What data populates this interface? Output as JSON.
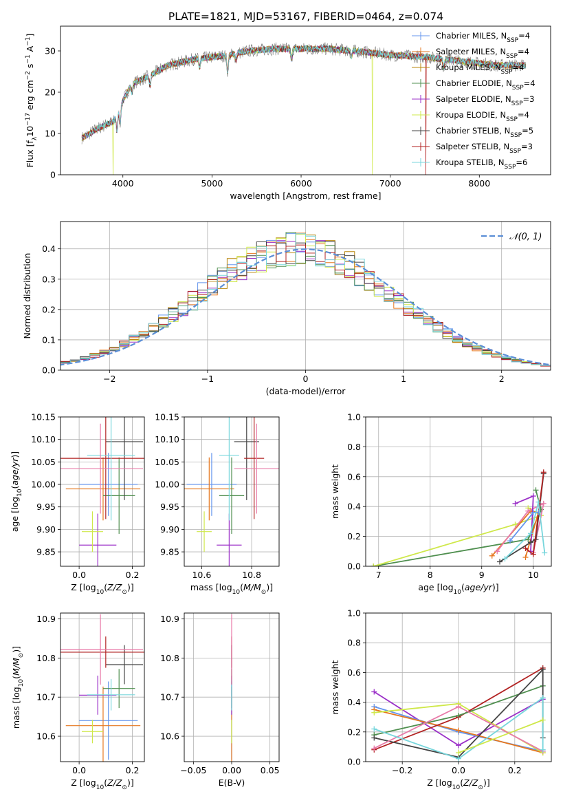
{
  "figure_title": "PLATE=1821, MJD=53167, FIBERID=0464, z=0.074",
  "colors": {
    "Chabrier MILES": "#6495ed",
    "Salpeter MILES": "#e6771e",
    "Kroupa MILES": "#b8860b",
    "Chabrier ELODIE": "#4f8f4f",
    "Salpeter ELODIE": "#9b30c8",
    "Kroupa ELODIE": "#cfe84a",
    "Chabrier STELIB": "#444444",
    "Salpeter STELIB": "#b22222",
    "Kroupa STELIB": "#77d6dc",
    "pink": "#e87aa8",
    "gaussian": "#5b8ed6"
  },
  "chart_data": [
    {
      "id": "spectrum",
      "type": "line",
      "xlabel": "wavelength [Angstrom, rest frame]",
      "ylabel": "Flux [f_λ10^-17 erg cm^-2 s^-1 A^-1]",
      "xlim": [
        3300,
        8800
      ],
      "ylim": [
        0,
        36
      ],
      "xticks": [
        4000,
        5000,
        6000,
        7000,
        8000
      ],
      "yticks": [
        0,
        10,
        20,
        30
      ],
      "grid": false,
      "legend_position": "right",
      "legend": [
        {
          "name": "Chabrier MILES, N_SSP=4",
          "pre": "Chabrier MILES, N",
          "sub": "SSP",
          "post": "=4",
          "color": "#6495ed"
        },
        {
          "name": "Salpeter MILES, N_SSP=4",
          "pre": "Salpeter MILES, N",
          "sub": "SSP",
          "post": "=4",
          "color": "#e6771e"
        },
        {
          "name": "Kroupa MILES, N_SSP=4",
          "pre": "Kroupa MILES, N",
          "sub": "SSP",
          "post": "=4",
          "color": "#b8860b"
        },
        {
          "name": "Chabrier ELODIE, N_SSP=4",
          "pre": "Chabrier ELODIE, N",
          "sub": "SSP",
          "post": "=4",
          "color": "#4f8f4f"
        },
        {
          "name": "Salpeter ELODIE, N_SSP=3",
          "pre": "Salpeter ELODIE, N",
          "sub": "SSP",
          "post": "=3",
          "color": "#9b30c8"
        },
        {
          "name": "Kroupa ELODIE, N_SSP=4",
          "pre": "Kroupa ELODIE, N",
          "sub": "SSP",
          "post": "=4",
          "color": "#cfe84a"
        },
        {
          "name": "Chabrier STELIB, N_SSP=5",
          "pre": "Chabrier STELIB, N",
          "sub": "SSP",
          "post": "=5",
          "color": "#444444"
        },
        {
          "name": "Salpeter STELIB, N_SSP=3",
          "pre": "Salpeter STELIB, N",
          "sub": "SSP",
          "post": "=3",
          "color": "#b22222"
        },
        {
          "name": "Kroupa STELIB, N_SSP=6",
          "pre": "Kroupa STELIB, N",
          "sub": "SSP",
          "post": "=6",
          "color": "#77d6dc"
        }
      ],
      "continuum_knots": [
        [
          3550,
          9
        ],
        [
          3700,
          11
        ],
        [
          3900,
          13
        ],
        [
          4000,
          18
        ],
        [
          4100,
          22
        ],
        [
          4300,
          24
        ],
        [
          4500,
          26.5
        ],
        [
          4800,
          28
        ],
        [
          5000,
          28.5
        ],
        [
          5200,
          29
        ],
        [
          5400,
          30
        ],
        [
          5700,
          30.5
        ],
        [
          6000,
          30.5
        ],
        [
          6300,
          30.5
        ],
        [
          6600,
          30
        ],
        [
          7000,
          29
        ],
        [
          7400,
          28.5
        ],
        [
          7800,
          27.5
        ],
        [
          8200,
          26.5
        ],
        [
          8500,
          26.5
        ]
      ],
      "absorption_features": [
        [
          3934,
          4
        ],
        [
          3969,
          4
        ],
        [
          4102,
          2
        ],
        [
          4305,
          2.5
        ],
        [
          4861,
          2
        ],
        [
          5175,
          4
        ],
        [
          5270,
          1.5
        ],
        [
          5892,
          2.5
        ],
        [
          6563,
          1.5
        ],
        [
          7600,
          2
        ]
      ],
      "spikes_to_zero": [
        {
          "x": 3890,
          "model": "Kroupa ELODIE"
        },
        {
          "x": 6800,
          "model": "Kroupa ELODIE"
        },
        {
          "x": 7400,
          "model": "Salpeter STELIB"
        }
      ]
    },
    {
      "id": "residuals",
      "type": "histogram",
      "xlabel": "(data-model)/error",
      "ylabel": "Normed distribution",
      "xlim": [
        -2.5,
        2.5
      ],
      "ylim": [
        0,
        0.49
      ],
      "xticks": [
        -2,
        -1,
        0,
        1,
        2
      ],
      "yticks": [
        0.0,
        0.1,
        0.2,
        0.3,
        0.4
      ],
      "grid": true,
      "bin_width": 0.1,
      "legend": [
        {
          "name": "𝒩(0, 1)",
          "style": "dashed",
          "color": "#5b8ed6"
        }
      ],
      "series_colors": [
        "#6495ed",
        "#e6771e",
        "#b8860b",
        "#4f8f4f",
        "#9b30c8",
        "#cfe84a",
        "#444444",
        "#b22222",
        "#77d6dc"
      ]
    },
    {
      "id": "age_vs_Z",
      "type": "errorbar",
      "xlabel": "Z [log10(Z/Z⊙)]",
      "ylabel": "age [log10(age/yr)]",
      "xlim": [
        -0.07,
        0.245
      ],
      "ylim": [
        9.818,
        10.15
      ],
      "xticks": [
        0.0,
        0.2
      ],
      "yticks": [
        9.85,
        9.9,
        9.95,
        10.0,
        10.05,
        10.1,
        10.15
      ],
      "grid": true,
      "points": [
        {
          "x": 0.11,
          "xerr": 0.11,
          "y": 10.0,
          "yerr": 0.07,
          "color": "#6495ed"
        },
        {
          "x": 0.09,
          "xerr": 0.14,
          "y": 9.99,
          "yerr": 0.07,
          "color": "#e6771e"
        },
        {
          "x": 0.15,
          "xerr": 0.06,
          "y": 9.975,
          "yerr": 0.085,
          "color": "#4f8f4f"
        },
        {
          "x": 0.07,
          "xerr": 0.07,
          "y": 9.865,
          "yerr": 0.07,
          "color": "#9b30c8"
        },
        {
          "x": 0.05,
          "xerr": 0.04,
          "y": 9.895,
          "yerr": 0.045,
          "color": "#cfe84a"
        },
        {
          "x": 0.17,
          "xerr": 0.07,
          "y": 10.095,
          "yerr": 0.13,
          "color": "#444444"
        },
        {
          "x": 0.1,
          "xerr": 0.17,
          "y": 10.058,
          "yerr": 0.135,
          "color": "#b22222"
        },
        {
          "x": 0.12,
          "xerr": 0.09,
          "y": 10.065,
          "yerr": 0.145,
          "color": "#77d6dc"
        },
        {
          "x": 0.08,
          "xerr": 0.16,
          "y": 10.035,
          "yerr": 0.1,
          "color": "#e87aa8"
        }
      ]
    },
    {
      "id": "age_vs_mass",
      "type": "errorbar",
      "xlabel": "mass [log10(M/M⊙)]",
      "ylabel": "",
      "xlim": [
        10.53,
        10.91
      ],
      "ylim": [
        9.818,
        10.15
      ],
      "xticks": [
        10.6,
        10.8
      ],
      "yticks": [
        9.85,
        9.9,
        9.95,
        10.0,
        10.05,
        10.1,
        10.15
      ],
      "grid": true,
      "points": [
        {
          "x": 10.64,
          "xerr": 0.1,
          "y": 10.0,
          "yerr": 0.07,
          "color": "#6495ed"
        },
        {
          "x": 10.63,
          "xerr": 0.1,
          "y": 9.99,
          "yerr": 0.07,
          "color": "#e6771e"
        },
        {
          "x": 10.72,
          "xerr": 0.05,
          "y": 9.975,
          "yerr": 0.085,
          "color": "#4f8f4f"
        },
        {
          "x": 10.71,
          "xerr": 0.05,
          "y": 9.865,
          "yerr": 0.07,
          "color": "#9b30c8"
        },
        {
          "x": 10.61,
          "xerr": 0.03,
          "y": 9.895,
          "yerr": 0.045,
          "color": "#cfe84a"
        },
        {
          "x": 10.78,
          "xerr": 0.05,
          "y": 10.095,
          "yerr": 0.13,
          "color": "#444444"
        },
        {
          "x": 10.81,
          "xerr": 0.04,
          "y": 10.058,
          "yerr": 0.135,
          "color": "#b22222"
        },
        {
          "x": 10.71,
          "xerr": 0.04,
          "y": 10.065,
          "yerr": 0.145,
          "color": "#77d6dc"
        },
        {
          "x": 10.82,
          "xerr": 0.09,
          "y": 10.035,
          "yerr": 0.1,
          "color": "#e87aa8"
        }
      ]
    },
    {
      "id": "weight_vs_age",
      "type": "line",
      "xlabel": "age [log10(age/yr)]",
      "ylabel": "mass weight",
      "xlim": [
        6.75,
        10.35
      ],
      "ylim": [
        0,
        1.0
      ],
      "xticks": [
        7,
        8,
        9,
        10
      ],
      "yticks": [
        0.0,
        0.2,
        0.4,
        0.6,
        0.8,
        1.0
      ],
      "grid": true,
      "series": [
        {
          "color": "#4f8f4f",
          "x": [
            6.9,
            9.9,
            10.15,
            10.05
          ],
          "y": [
            0.0,
            0.18,
            0.38,
            0.51
          ]
        },
        {
          "color": "#cfe84a",
          "x": [
            6.9,
            9.65,
            10.15,
            9.9
          ],
          "y": [
            0.0,
            0.28,
            0.34,
            0.39
          ]
        },
        {
          "color": "#e6771e",
          "x": [
            9.2,
            9.95,
            10.1,
            9.85
          ],
          "y": [
            0.07,
            0.37,
            0.36,
            0.06
          ]
        },
        {
          "color": "#e87aa8",
          "x": [
            9.3,
            9.9,
            10.2,
            10.0
          ],
          "y": [
            0.1,
            0.37,
            0.42,
            0.09
          ]
        },
        {
          "color": "#9b30c8",
          "x": [
            9.65,
            10.0,
            9.95
          ],
          "y": [
            0.42,
            0.47,
            0.1
          ]
        },
        {
          "color": "#444444",
          "x": [
            9.35,
            9.95,
            10.05,
            10.2
          ],
          "y": [
            0.03,
            0.16,
            0.18,
            0.62
          ]
        },
        {
          "color": "#b22222",
          "x": [
            9.85,
            10.0,
            10.2
          ],
          "y": [
            0.12,
            0.08,
            0.63
          ]
        },
        {
          "color": "#6495ed",
          "x": [
            9.55,
            10.0,
            10.1
          ],
          "y": [
            0.17,
            0.36,
            0.36
          ]
        },
        {
          "color": "#77d6dc",
          "x": [
            9.45,
            9.95,
            10.1,
            10.22
          ],
          "y": [
            0.05,
            0.22,
            0.43,
            0.09
          ]
        }
      ]
    },
    {
      "id": "mass_vs_Z",
      "type": "errorbar",
      "xlabel": "Z [log10(Z/Z⊙)]",
      "ylabel": "mass [log10(M/M⊙)]",
      "xlim": [
        -0.07,
        0.245
      ],
      "ylim": [
        10.535,
        10.915
      ],
      "xticks": [
        0.0,
        0.2
      ],
      "yticks": [
        10.6,
        10.7,
        10.8,
        10.9
      ],
      "grid": true,
      "points": [
        {
          "x": 0.11,
          "xerr": 0.11,
          "y": 10.64,
          "yerr": 0.1,
          "color": "#6495ed"
        },
        {
          "x": 0.09,
          "xerr": 0.14,
          "y": 10.627,
          "yerr": 0.1,
          "color": "#e6771e"
        },
        {
          "x": 0.15,
          "xerr": 0.06,
          "y": 10.722,
          "yerr": 0.05,
          "color": "#4f8f4f"
        },
        {
          "x": 0.07,
          "xerr": 0.07,
          "y": 10.705,
          "yerr": 0.05,
          "color": "#9b30c8"
        },
        {
          "x": 0.05,
          "xerr": 0.04,
          "y": 10.612,
          "yerr": 0.03,
          "color": "#cfe84a"
        },
        {
          "x": 0.17,
          "xerr": 0.07,
          "y": 10.783,
          "yerr": 0.05,
          "color": "#444444"
        },
        {
          "x": 0.1,
          "xerr": 0.17,
          "y": 10.815,
          "yerr": 0.04,
          "color": "#b22222"
        },
        {
          "x": 0.12,
          "xerr": 0.09,
          "y": 10.706,
          "yerr": 0.04,
          "color": "#77d6dc"
        },
        {
          "x": 0.08,
          "xerr": 0.16,
          "y": 10.822,
          "yerr": 0.09,
          "color": "#e87aa8"
        }
      ]
    },
    {
      "id": "mass_vs_EBV",
      "type": "errorbar",
      "xlabel": "E(B-V)",
      "ylabel": "",
      "xlim": [
        -0.062,
        0.062
      ],
      "ylim": [
        10.535,
        10.915
      ],
      "xticks": [
        -0.05,
        0.0,
        0.05
      ],
      "yticks": [
        10.6,
        10.7,
        10.8,
        10.9
      ],
      "grid": true,
      "points": [
        {
          "x": 0.0,
          "xerr": 0.0,
          "y": 10.64,
          "yerr": 0.1,
          "color": "#6495ed"
        },
        {
          "x": 0.0,
          "xerr": 0.0,
          "y": 10.627,
          "yerr": 0.1,
          "color": "#e6771e"
        },
        {
          "x": 0.0,
          "xerr": 0.0,
          "y": 10.722,
          "yerr": 0.05,
          "color": "#4f8f4f"
        },
        {
          "x": 0.0,
          "xerr": 0.0,
          "y": 10.705,
          "yerr": 0.05,
          "color": "#9b30c8"
        },
        {
          "x": 0.0,
          "xerr": 0.0,
          "y": 10.612,
          "yerr": 0.03,
          "color": "#cfe84a"
        },
        {
          "x": 0.0,
          "xerr": 0.0,
          "y": 10.783,
          "yerr": 0.05,
          "color": "#444444"
        },
        {
          "x": 0.0,
          "xerr": 0.0,
          "y": 10.815,
          "yerr": 0.04,
          "color": "#b22222"
        },
        {
          "x": 0.0,
          "xerr": 0.0,
          "y": 10.706,
          "yerr": 0.04,
          "color": "#77d6dc"
        },
        {
          "x": 0.0,
          "xerr": 0.0,
          "y": 10.822,
          "yerr": 0.09,
          "color": "#e87aa8"
        }
      ]
    },
    {
      "id": "weight_vs_Z",
      "type": "line",
      "xlabel": "Z [log10(Z/Z⊙)]",
      "ylabel": "mass weight",
      "xlim": [
        -0.33,
        0.33
      ],
      "ylim": [
        0,
        1.0
      ],
      "xticks": [
        -0.2,
        0.0,
        0.2
      ],
      "yticks": [
        0.0,
        0.2,
        0.4,
        0.6,
        0.8,
        1.0
      ],
      "grid": true,
      "series": [
        {
          "color": "#9b30c8",
          "x": [
            -0.3,
            0.0,
            0.3
          ],
          "y": [
            0.47,
            0.11,
            0.42
          ]
        },
        {
          "color": "#6495ed",
          "x": [
            -0.3,
            0.0,
            0.3
          ],
          "y": [
            0.37,
            0.2,
            0.07
          ]
        },
        {
          "color": "#e6771e",
          "x": [
            -0.3,
            0.0,
            0.3
          ],
          "y": [
            0.35,
            0.21,
            0.06
          ]
        },
        {
          "color": "#cfe84a",
          "x": [
            -0.3,
            0.0,
            0.3
          ],
          "y": [
            0.33,
            0.39,
            0.06
          ]
        },
        {
          "color": "#b22222",
          "x": [
            -0.3,
            0.0,
            0.3
          ],
          "y": [
            0.08,
            0.3,
            0.63
          ]
        },
        {
          "color": "#4f8f4f",
          "x": [
            -0.3,
            0.0,
            0.3
          ],
          "y": [
            0.18,
            0.31,
            0.51
          ]
        },
        {
          "color": "#444444",
          "x": [
            -0.3,
            0.0,
            0.3,
            0.3
          ],
          "y": [
            0.16,
            0.03,
            0.62,
            0.16
          ]
        },
        {
          "color": "#e87aa8",
          "x": [
            -0.3,
            0.0,
            0.3
          ],
          "y": [
            0.09,
            0.37,
            0.07
          ]
        },
        {
          "color": "#77d6dc",
          "x": [
            -0.3,
            0.0,
            0.3,
            0.3
          ],
          "y": [
            0.22,
            0.02,
            0.43,
            0.08
          ]
        },
        {
          "color": "#cfe84a",
          "x": [
            0.0,
            0.3
          ],
          "y": [
            0.06,
            0.28
          ]
        }
      ]
    }
  ]
}
